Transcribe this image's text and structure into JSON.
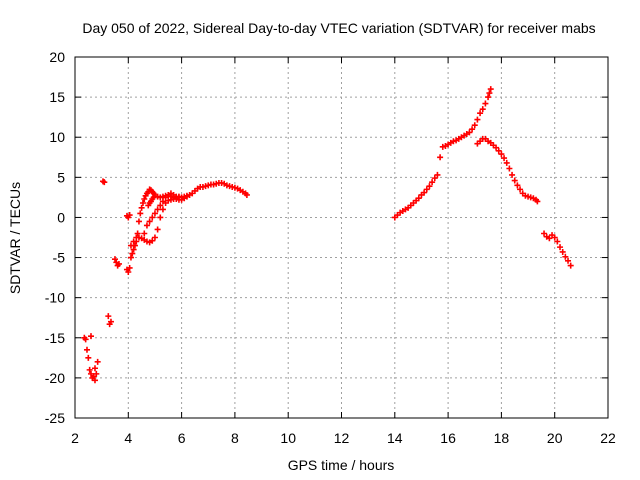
{
  "chart_data": {
    "type": "scatter",
    "title": "Day 050 of 2022, Sidereal Day-to-day VTEC variation (SDTVAR) for receiver mabs",
    "xlabel": "GPS time / hours",
    "ylabel": "SDTVAR / TECUs",
    "xlim": [
      2,
      22
    ],
    "ylim": [
      -25,
      20
    ],
    "xticks": [
      2,
      4,
      6,
      8,
      10,
      12,
      14,
      16,
      18,
      20,
      22
    ],
    "yticks": [
      -25,
      -20,
      -15,
      -10,
      -5,
      0,
      5,
      10,
      15,
      20
    ],
    "grid": true,
    "marker": "plus",
    "color": "#ff0000",
    "series": [
      {
        "name": "SDTVAR",
        "x": [
          2.35,
          2.4,
          2.45,
          2.5,
          2.55,
          2.6,
          2.65,
          2.7,
          2.75,
          2.8,
          2.85,
          2.6,
          2.75,
          3.05,
          3.1,
          3.25,
          3.3,
          3.35,
          3.5,
          3.55,
          3.6,
          3.65,
          3.95,
          4.0,
          4.05,
          4.1,
          4.15,
          4.2,
          4.25,
          4.3,
          4.35,
          4.4,
          4.45,
          4.5,
          4.55,
          4.6,
          4.65,
          4.7,
          4.75,
          4.8,
          4.85,
          4.9,
          4.95,
          5.0,
          5.1,
          5.2,
          5.3,
          5.4,
          5.5,
          5.6,
          5.7,
          5.8,
          5.9,
          6.0,
          6.1,
          6.2,
          6.3,
          6.4,
          6.5,
          6.6,
          6.7,
          6.8,
          6.9,
          7.0,
          7.1,
          7.2,
          7.3,
          7.4,
          7.5,
          7.6,
          7.7,
          7.8,
          7.9,
          8.0,
          8.1,
          8.2,
          8.3,
          8.4,
          8.45,
          4.1,
          4.2,
          4.3,
          4.4,
          4.5,
          4.6,
          4.7,
          4.8,
          4.9,
          5.0,
          5.1,
          5.2,
          5.3,
          5.4,
          5.5,
          5.6,
          5.7,
          5.8,
          5.9,
          6.0,
          6.1,
          6.2,
          4.6,
          4.7,
          4.8,
          4.9,
          5.0,
          5.1,
          5.2,
          5.3,
          5.4,
          5.5,
          5.6,
          5.7,
          5.8,
          5.9,
          4.75,
          4.8,
          4.85,
          4.9,
          4.95,
          4.05,
          4.0,
          3.95,
          14.0,
          14.1,
          14.2,
          14.3,
          14.4,
          14.5,
          14.6,
          14.7,
          14.8,
          14.9,
          15.0,
          15.1,
          15.2,
          15.3,
          15.4,
          15.5,
          15.6,
          15.7,
          15.8,
          15.9,
          16.0,
          16.1,
          16.2,
          16.3,
          16.4,
          16.5,
          16.6,
          16.7,
          16.8,
          16.9,
          17.0,
          17.1,
          17.2,
          17.3,
          17.4,
          17.5,
          17.55,
          17.6,
          17.1,
          17.2,
          17.3,
          17.4,
          17.5,
          17.6,
          17.7,
          17.8,
          17.9,
          18.0,
          18.1,
          18.2,
          18.3,
          18.4,
          18.5,
          18.6,
          18.7,
          18.8,
          18.9,
          19.0,
          19.1,
          19.2,
          19.3,
          19.35,
          19.6,
          19.7,
          19.8,
          19.9,
          20.0,
          20.1,
          20.2,
          20.3,
          20.4,
          20.5,
          20.6
        ],
        "y": [
          -15.0,
          -15.2,
          -16.5,
          -17.5,
          -19.0,
          -19.5,
          -20.0,
          -19.8,
          -20.3,
          -19.5,
          -18.0,
          -14.8,
          -18.8,
          4.5,
          4.4,
          -12.3,
          -13.3,
          -13.0,
          -5.2,
          -5.6,
          -6.0,
          -5.8,
          -6.5,
          -6.8,
          -6.3,
          -5.0,
          -4.5,
          -4.0,
          -3.5,
          -3.0,
          -2.0,
          -0.5,
          0.5,
          1.2,
          1.8,
          2.3,
          2.7,
          3.0,
          3.2,
          3.5,
          3.4,
          3.2,
          3.0,
          2.8,
          2.6,
          2.5,
          2.6,
          2.7,
          2.8,
          2.6,
          2.5,
          2.3,
          2.2,
          2.2,
          2.4,
          2.6,
          2.8,
          3.0,
          3.3,
          3.6,
          3.8,
          3.8,
          3.9,
          4.0,
          4.1,
          4.1,
          4.2,
          4.3,
          4.3,
          4.2,
          4.0,
          3.9,
          3.8,
          3.7,
          3.6,
          3.4,
          3.2,
          3.0,
          2.8,
          -3.5,
          -3.0,
          -2.5,
          -2.5,
          -2.6,
          -2.8,
          -3.0,
          -3.1,
          -2.9,
          -2.5,
          -1.5,
          0.0,
          1.0,
          1.8,
          2.1,
          2.2,
          2.3,
          2.4,
          2.6,
          2.5,
          2.6,
          2.7,
          -2.0,
          -1.0,
          -0.5,
          0.0,
          0.5,
          1.0,
          1.5,
          2.0,
          2.5,
          2.8,
          3.0,
          2.8,
          2.6,
          2.5,
          1.5,
          1.8,
          2.0,
          2.3,
          2.5,
          0.3,
          0.0,
          0.2,
          0.0,
          0.3,
          0.6,
          0.8,
          1.0,
          1.2,
          1.5,
          1.8,
          2.1,
          2.4,
          2.8,
          3.1,
          3.5,
          3.9,
          4.4,
          4.9,
          5.3,
          7.5,
          8.8,
          8.9,
          9.1,
          9.3,
          9.5,
          9.6,
          9.8,
          10.0,
          10.2,
          10.4,
          10.6,
          11.0,
          11.5,
          12.2,
          13.0,
          13.5,
          14.2,
          15.0,
          15.5,
          16.0,
          9.2,
          9.5,
          9.8,
          9.8,
          9.5,
          9.3,
          9.0,
          8.7,
          8.3,
          7.9,
          7.4,
          6.8,
          6.1,
          5.3,
          4.6,
          4.0,
          3.5,
          3.0,
          2.7,
          2.6,
          2.5,
          2.4,
          2.2,
          2.0,
          -2.0,
          -2.4,
          -2.6,
          -2.2,
          -2.5,
          -3.0,
          -3.7,
          -4.3,
          -4.9,
          -5.4,
          -6.0
        ]
      }
    ]
  }
}
